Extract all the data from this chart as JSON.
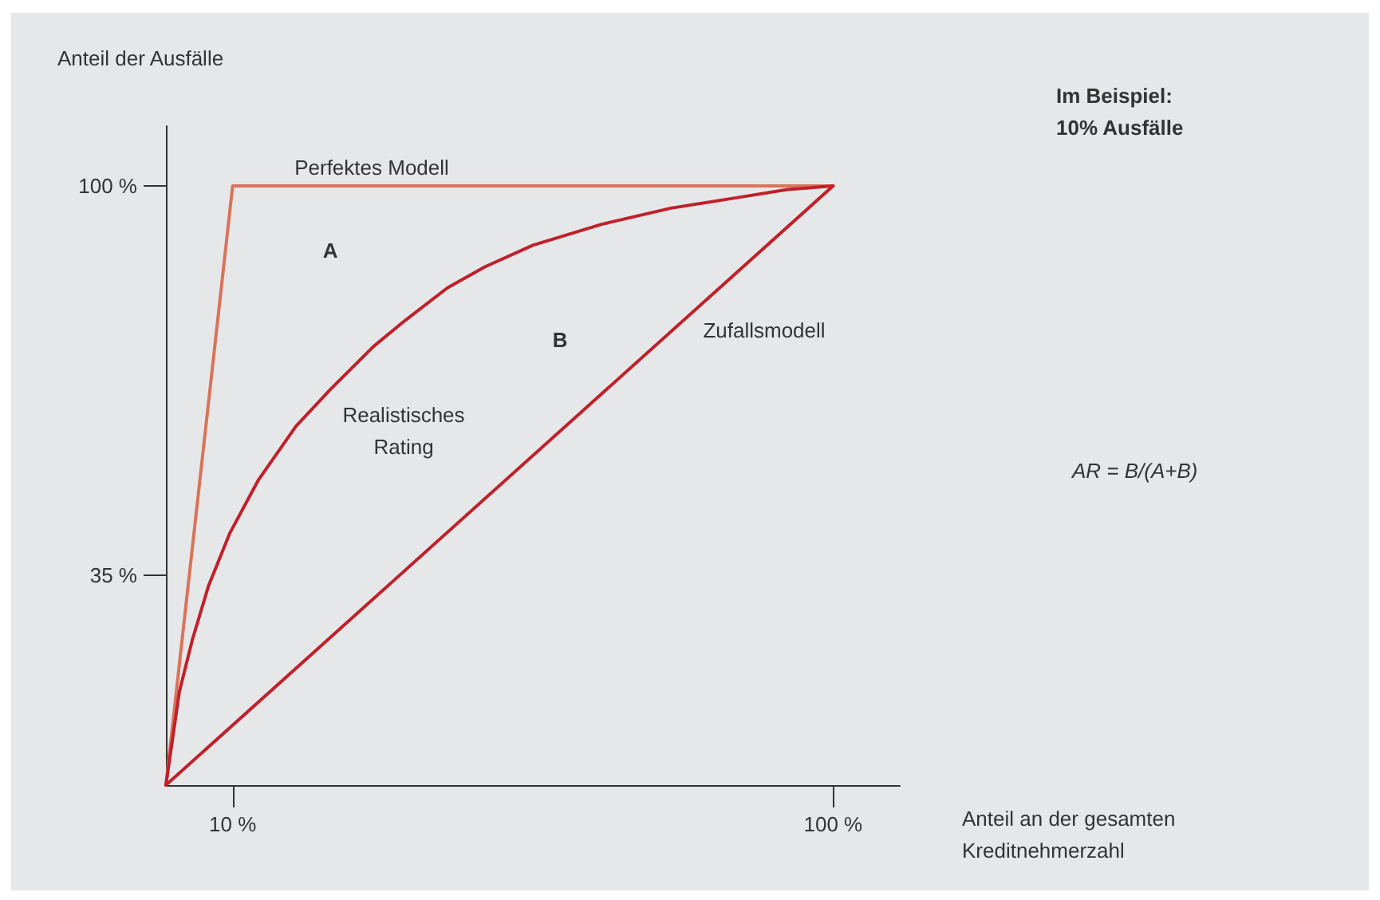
{
  "chart_data": {
    "type": "line",
    "xlabel": "Anteil an der gesamten\nKreditnehmerzahl",
    "ylabel": "Anteil der Ausfälle",
    "xlim": [
      0,
      110
    ],
    "ylim": [
      0,
      110
    ],
    "xticks": [
      {
        "value": 10,
        "label": "10 %"
      },
      {
        "value": 100,
        "label": "100 %"
      }
    ],
    "yticks": [
      {
        "value": 35,
        "label": "35 %"
      },
      {
        "value": 100,
        "label": "100 %"
      }
    ],
    "grid": false,
    "marker": "none",
    "line_style": "solid",
    "series": [
      {
        "color": "#d9735a",
        "x": [
          0,
          10,
          100
        ],
        "values": [
          0,
          100,
          100
        ]
      },
      {
        "color": "#c0202a",
        "x": [
          0,
          2.0,
          4.0,
          6.4,
          9.6,
          13.9,
          19.5,
          24.7,
          31.1,
          35.9,
          42.2,
          47.8,
          55.0,
          65.3,
          75.7,
          85.3,
          93.2,
          100
        ],
        "values": [
          0,
          15.5,
          24.4,
          33.3,
          42.1,
          51.0,
          59.9,
          66.1,
          73.2,
          77.6,
          83.0,
          86.5,
          90.1,
          93.6,
          96.3,
          98.0,
          99.4,
          100
        ]
      },
      {
        "color": "#c0202a",
        "x": [
          0,
          100
        ],
        "values": [
          0,
          100
        ]
      }
    ],
    "annotations": [
      "Perfektes Modell",
      "A",
      "B",
      "Zufallsmodell",
      "Realistisches\nRating",
      "Im Beispiel:\n10% Ausfälle",
      "AR = B/(A+B)"
    ]
  }
}
